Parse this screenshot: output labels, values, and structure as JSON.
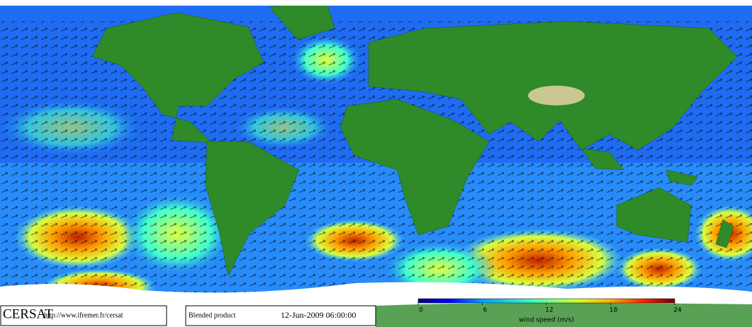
{
  "header": {
    "logo": "CERSAT",
    "url": "http://www.ifremer.fr/cersat",
    "product": "Blended product",
    "date": "12-Jun-2009 06:00:00"
  },
  "colorbar": {
    "label": "wind speed (m/s)",
    "lim": [
      0,
      24
    ],
    "ticks": [
      0,
      6,
      12,
      18,
      24
    ]
  }
}
